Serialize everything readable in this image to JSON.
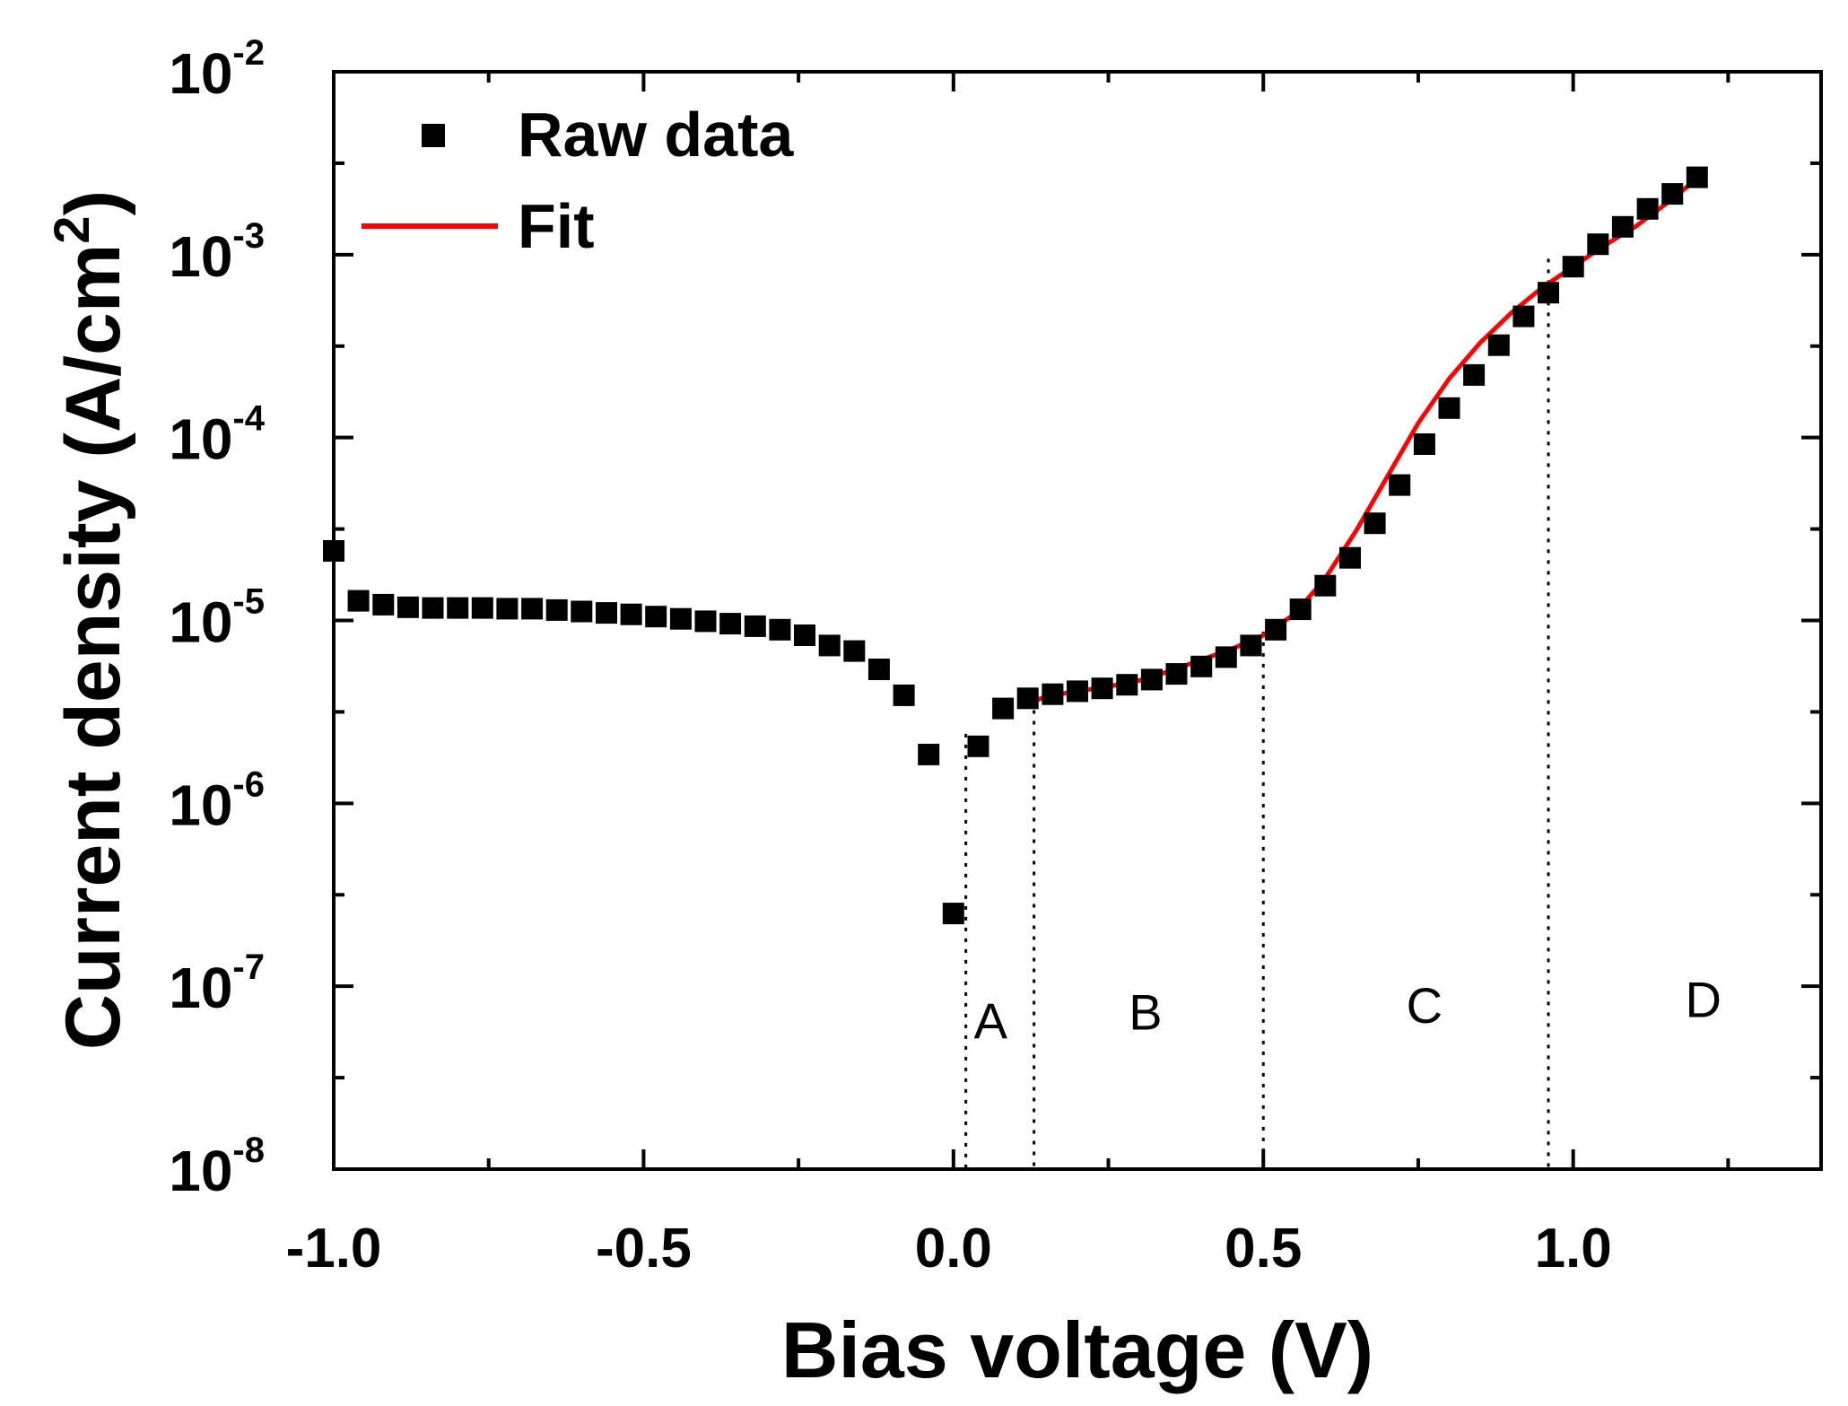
{
  "chart_data": {
    "type": "scatter",
    "title": "",
    "xlabel": "Bias voltage (V)",
    "ylabel_main": "Current density (A/cm",
    "ylabel_sup": "2",
    "ylabel_close": ")",
    "yscale": "log",
    "xlim": [
      -1.0,
      1.4
    ],
    "ylim": [
      1e-08,
      0.01
    ],
    "x_ticks": [
      {
        "value": -1.0,
        "label": "-1.0"
      },
      {
        "value": -0.5,
        "label": "-0.5"
      },
      {
        "value": 0.0,
        "label": "0.0"
      },
      {
        "value": 0.5,
        "label": "0.5"
      },
      {
        "value": 1.0,
        "label": "1.0"
      }
    ],
    "y_ticks": [
      {
        "exp": -8,
        "base": "10",
        "sup": "-8"
      },
      {
        "exp": -7,
        "base": "10",
        "sup": "-7"
      },
      {
        "exp": -6,
        "base": "10",
        "sup": "-6"
      },
      {
        "exp": -5,
        "base": "10",
        "sup": "-5"
      },
      {
        "exp": -4,
        "base": "10",
        "sup": "-4"
      },
      {
        "exp": -3,
        "base": "10",
        "sup": "-3"
      },
      {
        "exp": -2,
        "base": "10",
        "sup": "-2"
      }
    ],
    "legend": {
      "position": "top-left",
      "entries": [
        {
          "label": "Raw data",
          "marker": "square",
          "color": "#000000"
        },
        {
          "label": "Fit",
          "marker": "line",
          "color": "#ff0000"
        }
      ]
    },
    "series": [
      {
        "name": "Raw data",
        "color": "#000000",
        "x": [
          -1.0,
          -0.96,
          -0.92,
          -0.88,
          -0.84,
          -0.8,
          -0.76,
          -0.72,
          -0.68,
          -0.64,
          -0.6,
          -0.56,
          -0.52,
          -0.48,
          -0.44,
          -0.4,
          -0.36,
          -0.32,
          -0.28,
          -0.24,
          -0.2,
          -0.16,
          -0.12,
          -0.08,
          -0.04,
          0.0,
          0.04,
          0.08,
          0.12,
          0.16,
          0.2,
          0.24,
          0.28,
          0.32,
          0.36,
          0.4,
          0.44,
          0.48,
          0.52,
          0.56,
          0.6,
          0.64,
          0.68,
          0.72,
          0.76,
          0.8,
          0.84,
          0.88,
          0.92,
          0.96,
          1.0,
          1.04,
          1.08,
          1.12,
          1.16,
          1.2
        ],
        "y": [
          2.4e-05,
          1.28e-05,
          1.22e-05,
          1.18e-05,
          1.17e-05,
          1.17e-05,
          1.17e-05,
          1.16e-05,
          1.16e-05,
          1.14e-05,
          1.12e-05,
          1.1e-05,
          1.08e-05,
          1.05e-05,
          1.02e-05,
          9.9e-06,
          9.6e-06,
          9.3e-06,
          8.9e-06,
          8.3e-06,
          7.3e-06,
          6.8e-06,
          5.4e-06,
          3.9e-06,
          1.85e-06,
          2.5e-07,
          2.05e-06,
          3.3e-06,
          3.75e-06,
          3.95e-06,
          4.1e-06,
          4.25e-06,
          4.45e-06,
          4.75e-06,
          5.1e-06,
          5.6e-06,
          6.3e-06,
          7.3e-06,
          8.9e-06,
          1.15e-05,
          1.55e-05,
          2.2e-05,
          3.4e-05,
          5.5e-05,
          9.2e-05,
          0.000145,
          0.00022,
          0.00032,
          0.00046,
          0.00062,
          0.00086,
          0.00114,
          0.00142,
          0.00178,
          0.00215,
          0.00265
        ]
      },
      {
        "name": "Fit",
        "color": "#ff0000",
        "x": [
          0.11,
          0.15,
          0.2,
          0.25,
          0.3,
          0.35,
          0.4,
          0.45,
          0.5,
          0.55,
          0.6,
          0.65,
          0.7,
          0.75,
          0.8,
          0.85,
          0.9,
          0.95,
          1.0,
          1.05,
          1.1,
          1.15,
          1.2
        ],
        "y": [
          3.4e-06,
          3.85e-06,
          4.1e-06,
          4.35e-06,
          4.7e-06,
          5.3e-06,
          6.1e-06,
          7e-06,
          8.3e-06,
          1.08e-05,
          1.7e-05,
          3.1e-05,
          6.1e-05,
          0.00012,
          0.00021,
          0.00033,
          0.00048,
          0.00066,
          0.00086,
          0.00112,
          0.00142,
          0.0019,
          0.0026
        ]
      }
    ],
    "regions": [
      {
        "label": "A",
        "x_start": 0.02,
        "x_end": 0.13,
        "label_x": 0.06,
        "label_y": 5.2e-08
      },
      {
        "label": "B",
        "x_start": 0.13,
        "x_end": 0.5,
        "label_x": 0.31,
        "label_y": 5.8e-08
      },
      {
        "label": "C",
        "x_start": 0.5,
        "x_end": 0.96,
        "label_x": 0.76,
        "label_y": 6.3e-08
      },
      {
        "label": "D",
        "x_start": 0.96,
        "x_end": 1.4,
        "label_x": 1.21,
        "label_y": 6.8e-08
      }
    ],
    "dividers": [
      {
        "x": 0.02,
        "y_top": 2.4e-06
      },
      {
        "x": 0.13,
        "y_top": 3.7e-06
      },
      {
        "x": 0.5,
        "y_top": 8.7e-06
      },
      {
        "x": 0.96,
        "y_top": 0.00095
      }
    ]
  }
}
